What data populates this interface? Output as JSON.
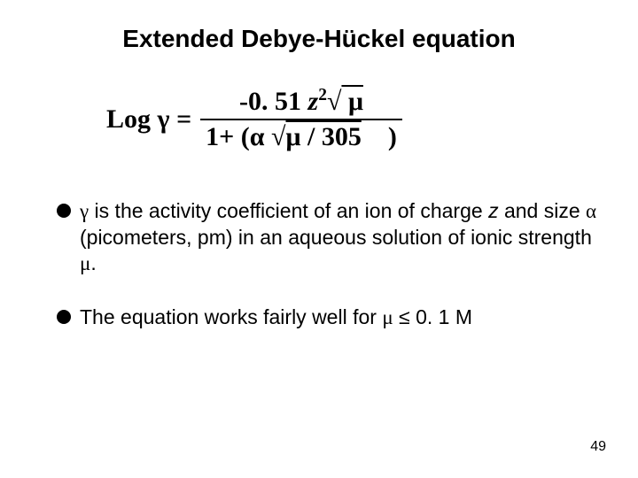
{
  "title": "Extended Debye-Hückel equation",
  "equation": {
    "lhs_prefix": "Log ",
    "lhs_gamma": "γ",
    "lhs_equals": " = ",
    "num_prefix": "-0. 51 ",
    "num_z": "z",
    "num_exp": "2",
    "num_sqrt": "√",
    "num_mu": " μ ",
    "den_prefix": "1+ (",
    "den_alpha": "α",
    "den_sqrt": " √",
    "den_mu_over": "μ / 305",
    "den_close": ")"
  },
  "bullet1": {
    "gamma": "γ",
    "part1": " is the activity coefficient of an ion of charge  ",
    "z": "z",
    "part2": " and size ",
    "alpha": "α",
    "part3": " (picometers, pm) in an aqueous solution of ionic strength ",
    "mu": "μ",
    "part4": "."
  },
  "bullet2": {
    "part1": "The equation works fairly well for ",
    "mu": "μ",
    "leq": " ≤ ",
    "part2": "0. 1 M"
  },
  "pagenum": "49"
}
